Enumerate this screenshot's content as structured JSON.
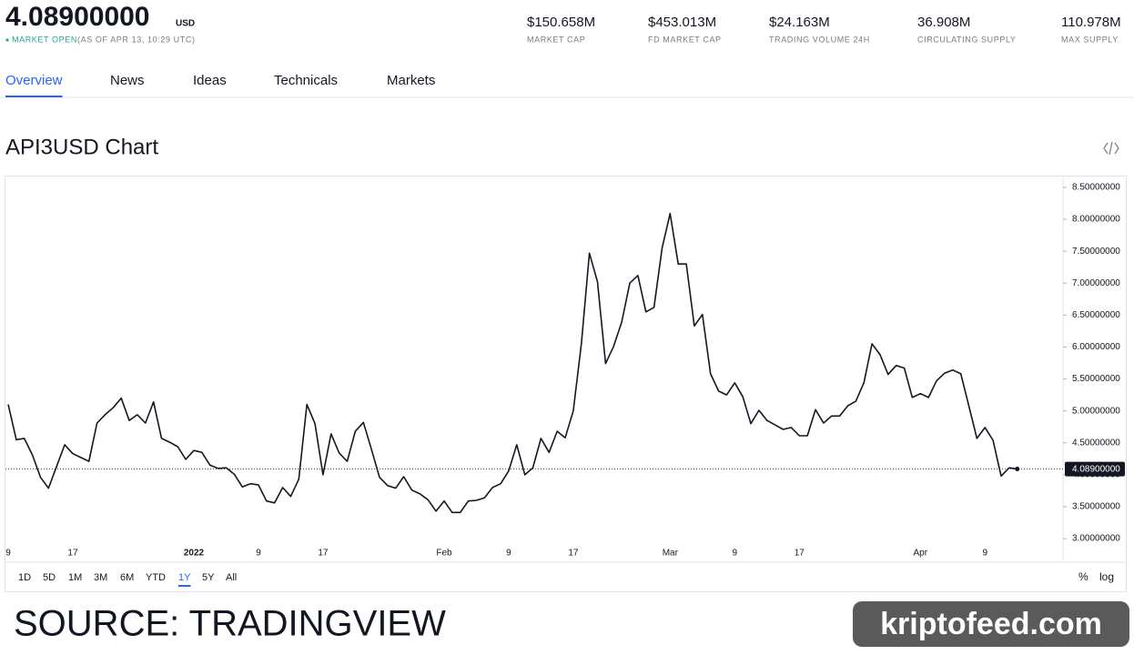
{
  "header": {
    "price": "4.08900000",
    "currency": "USD",
    "status": "MARKET OPEN",
    "as_of": "(AS OF APR 13, 10:29 UTC)",
    "stats": [
      {
        "value": "$150.658M",
        "label": "MARKET CAP"
      },
      {
        "value": "$453.013M",
        "label": "FD MARKET CAP"
      },
      {
        "value": "$24.163M",
        "label": "TRADING VOLUME 24H"
      },
      {
        "value": "36.908M",
        "label": "CIRCULATING SUPPLY"
      },
      {
        "value": "110.978M",
        "label": "MAX SUPPLY"
      }
    ]
  },
  "tabs": {
    "items": [
      "Overview",
      "News",
      "Ideas",
      "Technicals",
      "Markets"
    ],
    "active": 0
  },
  "chart_data": {
    "type": "line",
    "title": "API3USD Chart",
    "color": "#131722",
    "categories": [
      "9",
      null,
      null,
      null,
      null,
      null,
      null,
      null,
      "17",
      null,
      null,
      null,
      null,
      null,
      null,
      null,
      null,
      null,
      null,
      null,
      null,
      null,
      null,
      "2022",
      null,
      null,
      null,
      null,
      null,
      null,
      null,
      "9",
      null,
      null,
      null,
      null,
      null,
      null,
      null,
      "17",
      null,
      null,
      null,
      null,
      null,
      null,
      null,
      null,
      null,
      null,
      null,
      null,
      null,
      null,
      "Feb",
      null,
      null,
      null,
      null,
      null,
      null,
      null,
      "9",
      null,
      null,
      null,
      null,
      null,
      null,
      null,
      "17",
      null,
      null,
      null,
      null,
      null,
      null,
      null,
      null,
      null,
      null,
      null,
      "Mar",
      null,
      null,
      null,
      null,
      null,
      null,
      null,
      "9",
      null,
      null,
      null,
      null,
      null,
      null,
      null,
      "17",
      null,
      null,
      null,
      null,
      null,
      null,
      null,
      null,
      null,
      null,
      null,
      null,
      null,
      null,
      "Apr",
      null,
      null,
      null,
      null,
      null,
      null,
      null,
      "9",
      null,
      null,
      null,
      null
    ],
    "values": [
      5.1,
      4.55,
      4.57,
      4.31,
      3.96,
      3.79,
      4.13,
      4.47,
      4.33,
      4.27,
      4.21,
      4.81,
      4.94,
      5.05,
      5.2,
      4.85,
      4.94,
      4.81,
      5.14,
      4.57,
      4.51,
      4.44,
      4.24,
      4.38,
      4.35,
      4.15,
      4.1,
      4.11,
      4.01,
      3.81,
      3.86,
      3.84,
      3.59,
      3.56,
      3.8,
      3.66,
      3.93,
      5.1,
      4.8,
      4.0,
      4.64,
      4.34,
      4.21,
      4.68,
      4.82,
      4.4,
      3.96,
      3.83,
      3.79,
      3.97,
      3.76,
      3.7,
      3.61,
      3.43,
      3.59,
      3.41,
      3.41,
      3.59,
      3.6,
      3.64,
      3.8,
      3.86,
      4.06,
      4.47,
      4.0,
      4.11,
      4.57,
      4.35,
      4.68,
      4.58,
      5.0,
      6.05,
      7.47,
      7.02,
      5.74,
      6.01,
      6.39,
      7.0,
      7.12,
      6.55,
      6.62,
      7.55,
      8.09,
      7.3,
      7.3,
      6.33,
      6.51,
      5.58,
      5.31,
      5.25,
      5.44,
      5.22,
      4.8,
      5.01,
      4.85,
      4.78,
      4.71,
      4.74,
      4.61,
      4.61,
      5.02,
      4.81,
      4.92,
      4.92,
      5.08,
      5.15,
      5.44,
      6.05,
      5.88,
      5.57,
      5.71,
      5.67,
      5.21,
      5.27,
      5.21,
      5.47,
      5.59,
      5.64,
      5.58,
      5.08,
      4.57,
      4.74,
      4.54,
      3.98,
      4.11,
      4.09
    ],
    "ylim": [
      2.93,
      8.67
    ],
    "yticks": [
      {
        "value": 3.0,
        "label": "3.00000000"
      },
      {
        "value": 3.5,
        "label": "3.50000000"
      },
      {
        "value": 4.0,
        "label": "4.00000000"
      },
      {
        "value": 4.5,
        "label": "4.50000000"
      },
      {
        "value": 5.0,
        "label": "5.00000000"
      },
      {
        "value": 5.5,
        "label": "5.50000000"
      },
      {
        "value": 6.0,
        "label": "6.00000000"
      },
      {
        "value": 6.5,
        "label": "6.50000000"
      },
      {
        "value": 7.0,
        "label": "7.00000000"
      },
      {
        "value": 7.5,
        "label": "7.50000000"
      },
      {
        "value": 8.0,
        "label": "8.00000000"
      },
      {
        "value": 8.5,
        "label": "8.50000000"
      }
    ],
    "price_line": {
      "value": 4.089,
      "label": "4.08900000"
    },
    "grid": false
  },
  "toolbar": {
    "ranges": [
      "1D",
      "5D",
      "1M",
      "3M",
      "6M",
      "YTD",
      "1Y",
      "5Y",
      "All"
    ],
    "active": 6,
    "options": [
      "%",
      "log"
    ]
  },
  "footer": {
    "source": "SOURCE: TRADINGVIEW",
    "watermark": "kriptofeed.com"
  }
}
